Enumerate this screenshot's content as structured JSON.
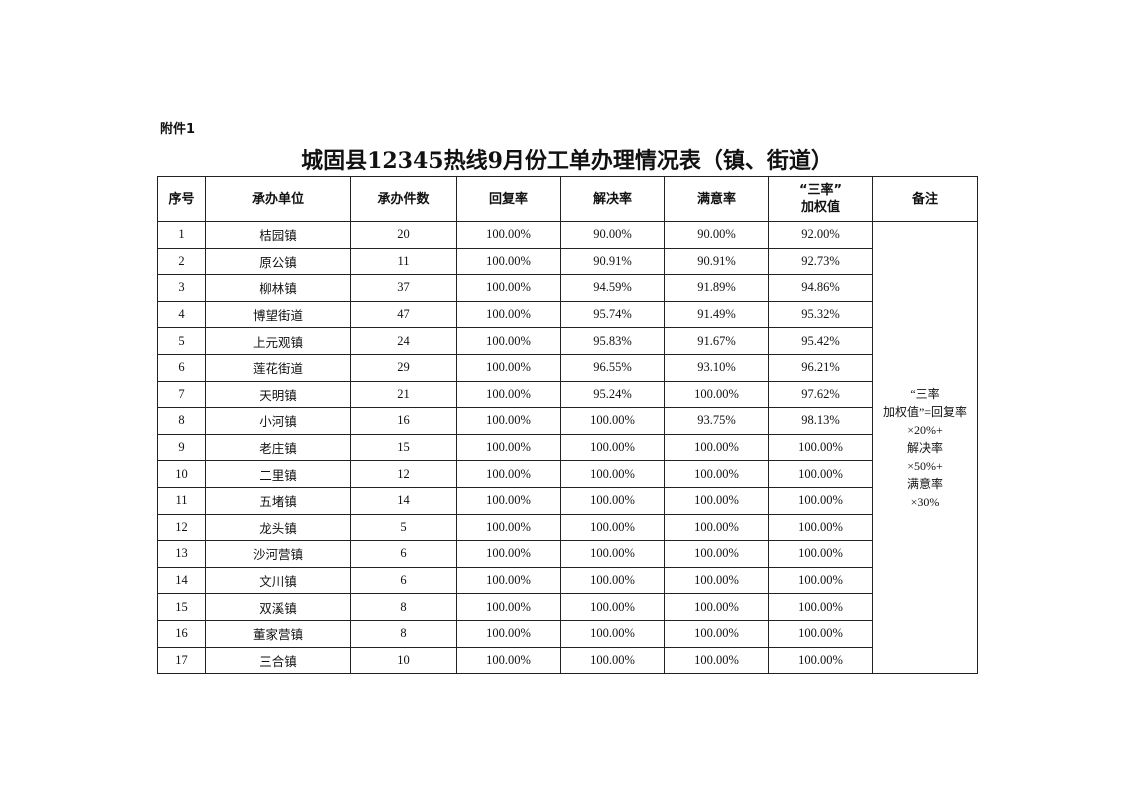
{
  "attachment_label": "附件1",
  "title": "城固县12345热线9月份工单办理情况表（镇、街道）",
  "table": {
    "headers": [
      "序号",
      "承办单位",
      "承办件数",
      "回复率",
      "解决率",
      "满意率",
      "“三率”\n加权值",
      "备注"
    ],
    "rows": [
      [
        "1",
        "桔园镇",
        "20",
        "100.00%",
        "90.00%",
        "90.00%",
        "92.00%"
      ],
      [
        "2",
        "原公镇",
        "11",
        "100.00%",
        "90.91%",
        "90.91%",
        "92.73%"
      ],
      [
        "3",
        "柳林镇",
        "37",
        "100.00%",
        "94.59%",
        "91.89%",
        "94.86%"
      ],
      [
        "4",
        "博望街道",
        "47",
        "100.00%",
        "95.74%",
        "91.49%",
        "95.32%"
      ],
      [
        "5",
        "上元观镇",
        "24",
        "100.00%",
        "95.83%",
        "91.67%",
        "95.42%"
      ],
      [
        "6",
        "莲花街道",
        "29",
        "100.00%",
        "96.55%",
        "93.10%",
        "96.21%"
      ],
      [
        "7",
        "天明镇",
        "21",
        "100.00%",
        "95.24%",
        "100.00%",
        "97.62%"
      ],
      [
        "8",
        "小河镇",
        "16",
        "100.00%",
        "100.00%",
        "93.75%",
        "98.13%"
      ],
      [
        "9",
        "老庄镇",
        "15",
        "100.00%",
        "100.00%",
        "100.00%",
        "100.00%"
      ],
      [
        "10",
        "二里镇",
        "12",
        "100.00%",
        "100.00%",
        "100.00%",
        "100.00%"
      ],
      [
        "11",
        "五堵镇",
        "14",
        "100.00%",
        "100.00%",
        "100.00%",
        "100.00%"
      ],
      [
        "12",
        "龙头镇",
        "5",
        "100.00%",
        "100.00%",
        "100.00%",
        "100.00%"
      ],
      [
        "13",
        "沙河营镇",
        "6",
        "100.00%",
        "100.00%",
        "100.00%",
        "100.00%"
      ],
      [
        "14",
        "文川镇",
        "6",
        "100.00%",
        "100.00%",
        "100.00%",
        "100.00%"
      ],
      [
        "15",
        "双溪镇",
        "8",
        "100.00%",
        "100.00%",
        "100.00%",
        "100.00%"
      ],
      [
        "16",
        "董家营镇",
        "8",
        "100.00%",
        "100.00%",
        "100.00%",
        "100.00%"
      ],
      [
        "17",
        "三合镇",
        "10",
        "100.00%",
        "100.00%",
        "100.00%",
        "100.00%"
      ]
    ],
    "note": "“三率\n加权值”=回复率\n×20%+\n解决率\n×50%+\n满意率\n×30%"
  }
}
